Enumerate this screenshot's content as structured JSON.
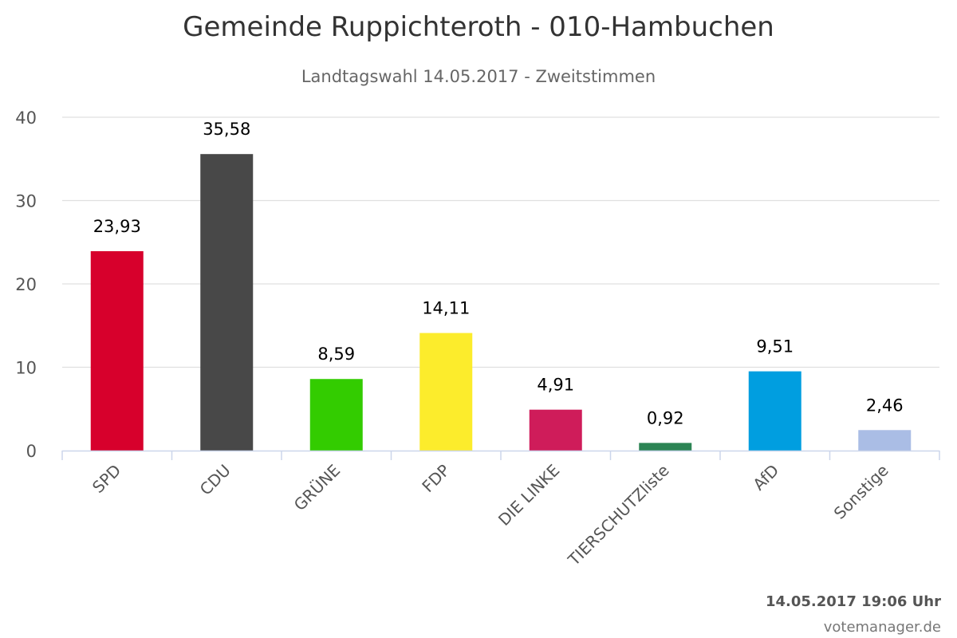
{
  "header": {
    "title": "Gemeinde Ruppichteroth - 010-Hambuchen",
    "subtitle": "Landtagswahl 14.05.2017 - Zweitstimmen"
  },
  "footer": {
    "timestamp": "14.05.2017 19:06 Uhr",
    "credit": "votemanager.de"
  },
  "chart_data": {
    "type": "bar",
    "title": "Gemeinde Ruppichteroth - 010-Hambuchen",
    "subtitle": "Landtagswahl 14.05.2017 - Zweitstimmen",
    "xlabel": "",
    "ylabel": "",
    "ylim": [
      0,
      40
    ],
    "yticks": [
      0,
      10,
      20,
      30,
      40
    ],
    "grid": true,
    "categories": [
      "SPD",
      "CDU",
      "GRÜNE",
      "FDP",
      "DIE LINKE",
      "TIERSCHUTZliste",
      "AfD",
      "Sonstige"
    ],
    "values": [
      23.93,
      35.58,
      8.59,
      14.11,
      4.91,
      0.92,
      9.51,
      2.46
    ],
    "value_labels": [
      "23,93",
      "35,58",
      "8,59",
      "14,11",
      "4,91",
      "0,92",
      "9,51",
      "2,46"
    ],
    "colors": [
      "#d7002c",
      "#484848",
      "#33cc00",
      "#fcec2c",
      "#cf1c5a",
      "#2c8454",
      "#009ee0",
      "#aabde5"
    ]
  }
}
